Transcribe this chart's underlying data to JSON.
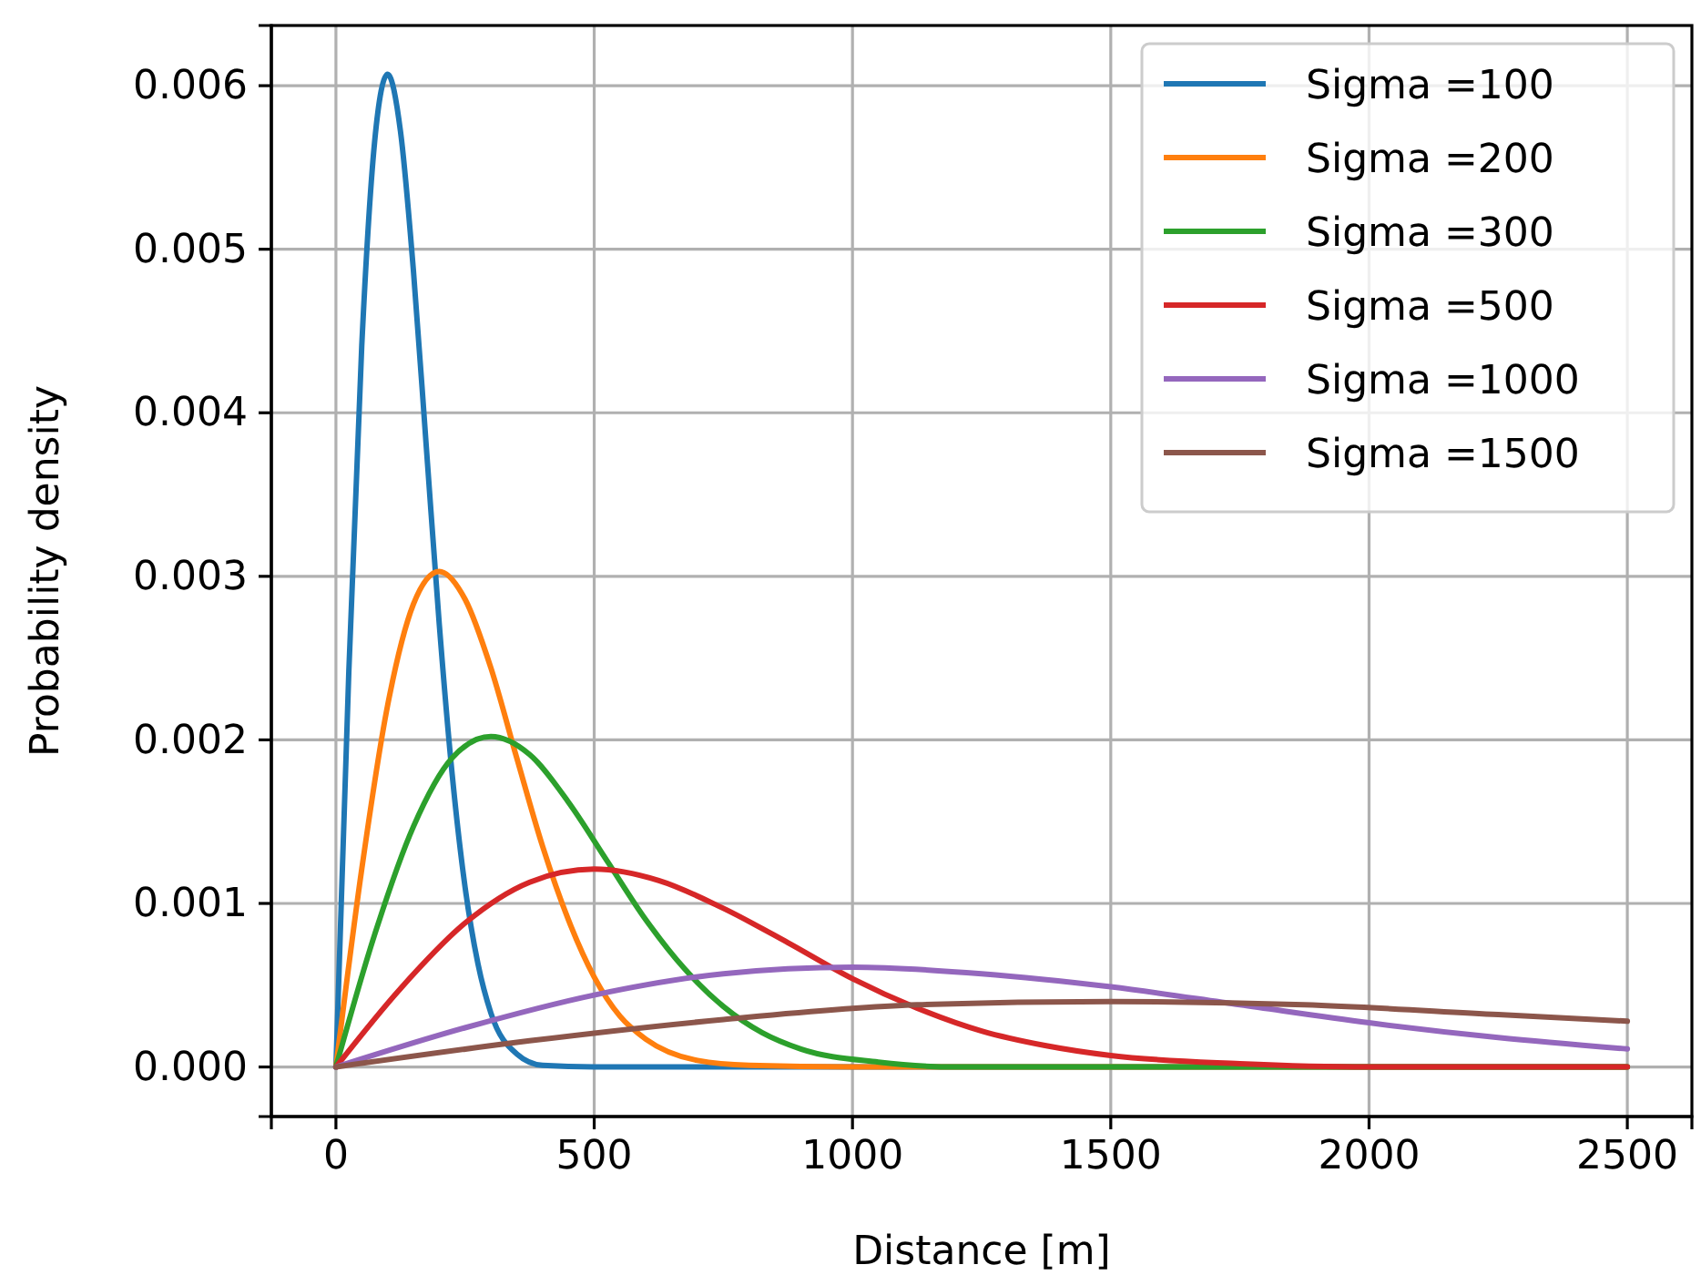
{
  "chart_data": {
    "type": "line",
    "xlabel": "Distance [m]",
    "ylabel": "Probability density",
    "xlim": [
      -125,
      2625
    ],
    "ylim": [
      -0.000303,
      0.006368
    ],
    "xticks": [
      0,
      500,
      1000,
      1500,
      2000,
      2500
    ],
    "yticks": [
      {
        "value": 0,
        "label": "0.000"
      },
      {
        "value": 0.001,
        "label": "0.001"
      },
      {
        "value": 0.002,
        "label": "0.002"
      },
      {
        "value": 0.003,
        "label": "0.003"
      },
      {
        "value": 0.004,
        "label": "0.004"
      },
      {
        "value": 0.005,
        "label": "0.005"
      },
      {
        "value": 0.006,
        "label": "0.006"
      }
    ],
    "grid": true,
    "legend": "top right",
    "line_style": "solid",
    "marker": "none",
    "series": [
      {
        "name": "Sigma =100",
        "color": "#1f77b4",
        "x": [
          0,
          25,
          50,
          75,
          100,
          125,
          150,
          175,
          200,
          225,
          250,
          275,
          300,
          350,
          400,
          500,
          2500
        ],
        "values": [
          0,
          0.00242,
          0.00441,
          0.00566,
          0.00607,
          0.00572,
          0.00487,
          0.00379,
          0.00271,
          0.00179,
          0.0011,
          0.00063,
          0.00033,
          8e-05,
          1e-05,
          0,
          0
        ]
      },
      {
        "name": "Sigma =200",
        "color": "#ff7f0e",
        "x": [
          0,
          50,
          100,
          150,
          200,
          250,
          300,
          350,
          400,
          450,
          500,
          550,
          600,
          700,
          800,
          1000,
          2500
        ],
        "values": [
          0,
          0.00121,
          0.00221,
          0.00283,
          0.00303,
          0.00286,
          0.00244,
          0.00189,
          0.00135,
          0.0009,
          0.00055,
          0.00031,
          0.00017,
          4e-05,
          1e-05,
          0,
          0
        ]
      },
      {
        "name": "Sigma =300",
        "color": "#2ca02c",
        "x": [
          0,
          75,
          150,
          225,
          300,
          375,
          450,
          525,
          600,
          675,
          750,
          825,
          900,
          1050,
          1200,
          1500,
          2500
        ],
        "values": [
          0,
          0.00081,
          0.00147,
          0.00189,
          0.00202,
          0.00191,
          0.00162,
          0.00126,
          0.0009,
          0.0006,
          0.00037,
          0.00021,
          0.00011,
          3e-05,
          0,
          0,
          0
        ]
      },
      {
        "name": "Sigma =500",
        "color": "#d62728",
        "x": [
          0,
          125,
          250,
          375,
          500,
          625,
          750,
          875,
          1000,
          1125,
          1250,
          1375,
          1500,
          1750,
          2000,
          2500
        ],
        "values": [
          0,
          0.00048,
          0.00088,
          0.00113,
          0.00121,
          0.00114,
          0.00097,
          0.00076,
          0.00054,
          0.00036,
          0.00022,
          0.00013,
          7e-05,
          2e-05,
          0,
          0
        ]
      },
      {
        "name": "Sigma =1000",
        "color": "#9467bd",
        "x": [
          0,
          250,
          500,
          750,
          1000,
          1250,
          1500,
          1750,
          2000,
          2250,
          2500
        ],
        "values": [
          0,
          0.00024,
          0.00044,
          0.00057,
          0.00061,
          0.00057,
          0.00049,
          0.00038,
          0.00027,
          0.00018,
          0.00011
        ]
      },
      {
        "name": "Sigma =1500",
        "color": "#8c564b",
        "x": [
          0,
          375,
          750,
          1125,
          1500,
          1875,
          2250,
          2500
        ],
        "values": [
          0,
          0.00016,
          0.00029,
          0.00038,
          0.0004,
          0.00038,
          0.00032,
          0.00028
        ]
      }
    ]
  }
}
